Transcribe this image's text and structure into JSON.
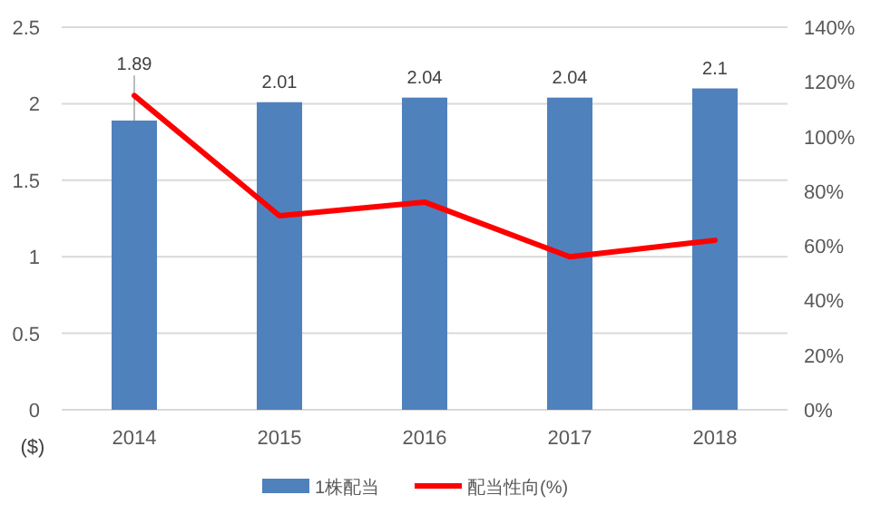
{
  "chart_data": {
    "type": "bar",
    "categories": [
      "2014",
      "2015",
      "2016",
      "2017",
      "2018"
    ],
    "series": [
      {
        "name": "1株配当",
        "color": "#4f81bd",
        "values": [
          1.89,
          2.01,
          2.04,
          2.04,
          2.1
        ],
        "value_labels": [
          "1.89",
          "2.01",
          "2.04",
          "2.04",
          "2.1"
        ]
      },
      {
        "name": "配当性向(%)",
        "type": "line",
        "axis": "y2",
        "color": "#ff0000",
        "values": [
          115,
          71,
          76,
          56,
          62
        ]
      }
    ],
    "ylabel": "($)",
    "ylim": [
      0,
      2.5
    ],
    "yticks": [
      0,
      0.5,
      1,
      1.5,
      2,
      2.5
    ],
    "y2lim": [
      0,
      140
    ],
    "y2ticks": [
      {
        "value": 0,
        "label": "0%"
      },
      {
        "value": 20,
        "label": "20%"
      },
      {
        "value": 40,
        "label": "40%"
      },
      {
        "value": 60,
        "label": "60%"
      },
      {
        "value": 80,
        "label": "80%"
      },
      {
        "value": 100,
        "label": "100%"
      },
      {
        "value": 120,
        "label": "120%"
      },
      {
        "value": 140,
        "label": "140%"
      }
    ],
    "grid": "y",
    "legend": "bottom"
  }
}
